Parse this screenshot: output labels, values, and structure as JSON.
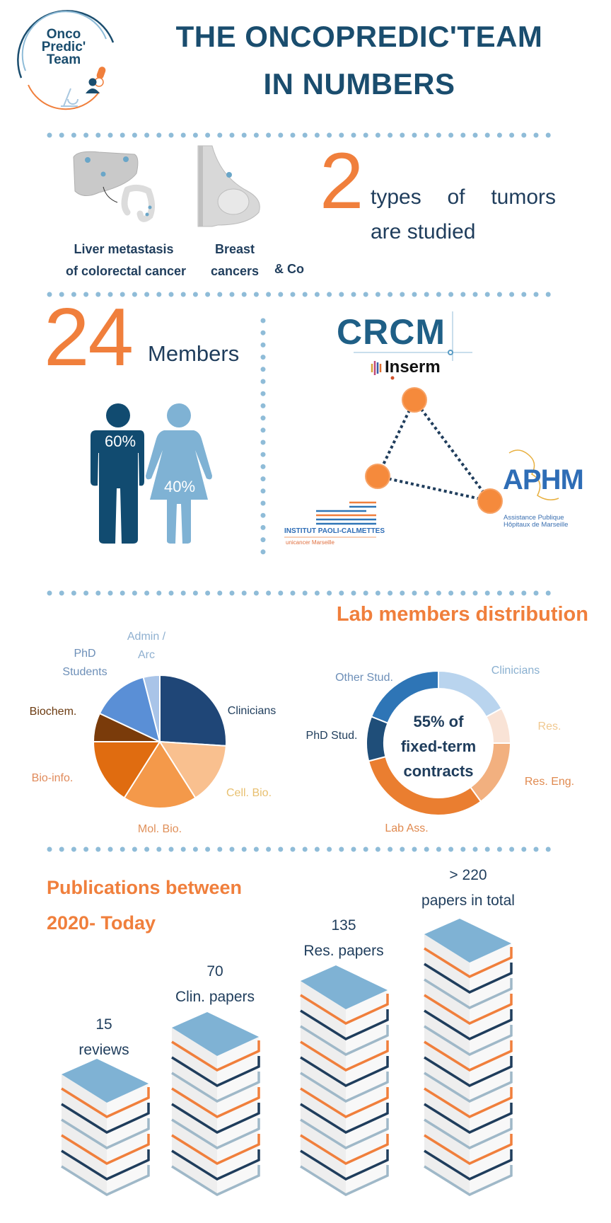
{
  "logo": {
    "line1": "Onco",
    "line2": "Predic'",
    "line3": "Team"
  },
  "header": {
    "title_line1": "THE ONCOPREDIC'TEAM",
    "title_line2": "IN NUMBERS"
  },
  "tumors": {
    "count": "2",
    "text_line1": "types of tumors",
    "text_line2": "are studied",
    "liver_label_1": "Liver metastasis",
    "liver_label_2": "of colorectal cancer",
    "breast_label_1": "Breast",
    "breast_label_2": "cancers",
    "other_label": "& Co"
  },
  "members": {
    "count": "24",
    "label": "Members",
    "male_pct": "60%",
    "female_pct": "40%",
    "male_color": "#114b70",
    "female_color": "#7fb2d4"
  },
  "partners": {
    "crcm": "CRCM",
    "inserm": "Inserm",
    "aphm": "APHM",
    "aphm_sub1": "Assistance Publique",
    "aphm_sub2": "Hôpitaux de Marseille",
    "ipc": "INSTITUT PAOLI-CALMETTES",
    "ipc_sub": "unicancer Marseille"
  },
  "distribution": {
    "title": "Lab members distribution"
  },
  "chart_data": [
    {
      "type": "pie",
      "categories": [
        "Clinicians",
        "Cell. Bio.",
        "Mol. Bio.",
        "Bio-info.",
        "Biochem.",
        "PhD Students",
        "Admin / Arc"
      ],
      "values": [
        26,
        15,
        18,
        16,
        7,
        14,
        4
      ],
      "colors": [
        "#1f4677",
        "#f9c08f",
        "#f4994a",
        "#e06c10",
        "#7a3b0a",
        "#5a8fd6",
        "#a9c4e8"
      ]
    },
    {
      "type": "donut",
      "center_text": [
        "55% of",
        "fixed-term",
        "contracts"
      ],
      "categories": [
        "Clinicians",
        "Res.",
        "Res. Eng.",
        "Lab Ass.",
        "PhD Stud.",
        "Other Stud."
      ],
      "values": [
        17,
        8,
        15,
        31,
        10,
        19
      ],
      "colors": [
        "#b9d4ee",
        "#f9e3d6",
        "#f2b07f",
        "#ea7e30",
        "#1f4e79",
        "#2e75b6"
      ]
    },
    {
      "type": "bar",
      "title": "Publications between 2020- Today",
      "categories": [
        "reviews",
        "Clin. papers",
        "Res. papers",
        "papers in total"
      ],
      "values": [
        "15",
        "70",
        "135",
        "> 220"
      ]
    }
  ],
  "publications": {
    "title_line1": "Publications between",
    "title_line2": "2020- Today",
    "stacks": [
      {
        "value": "15",
        "label": "reviews"
      },
      {
        "value": "70",
        "label": "Clin. papers"
      },
      {
        "value": "135",
        "label": "Res. papers"
      },
      {
        "value": "> 220",
        "label": "papers in total"
      }
    ]
  },
  "colors": {
    "navy": "#1a4d6e",
    "orange": "#f07f3c",
    "dots": "#8fbcd8"
  }
}
